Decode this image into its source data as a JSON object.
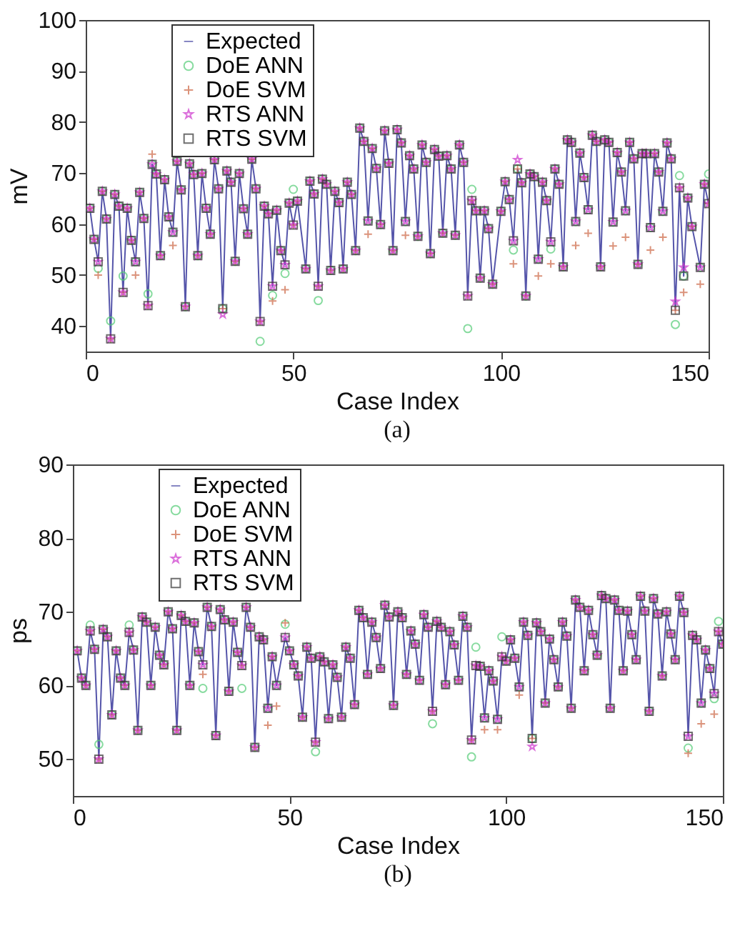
{
  "chart_data": [
    {
      "type": "line",
      "xlabel": "Case Index",
      "ylabel": "mV",
      "annotations": [
        "(a)"
      ],
      "xlim": [
        0,
        150
      ],
      "xticks": [
        0,
        50,
        100,
        150
      ],
      "ylim": [
        35,
        100
      ],
      "yticks": [
        40,
        50,
        60,
        70,
        80,
        90,
        100
      ],
      "grid": false,
      "legend": "top left",
      "x": [
        1,
        2,
        3,
        4,
        5,
        6,
        7,
        8,
        9,
        10,
        11,
        12,
        13,
        14,
        15,
        16,
        17,
        18,
        19,
        20,
        21,
        22,
        23,
        24,
        25,
        26,
        27,
        28,
        29,
        30,
        31,
        32,
        33,
        34,
        35,
        36,
        37,
        38,
        39,
        40,
        41,
        42,
        43,
        44,
        45,
        46,
        47,
        48,
        49,
        50,
        51,
        53,
        54,
        55,
        56,
        57,
        58,
        59,
        60,
        61,
        62,
        63,
        64,
        65,
        66,
        67,
        68,
        69,
        70,
        71,
        72,
        73,
        74,
        75,
        76,
        77,
        78,
        79,
        80,
        81,
        82,
        83,
        84,
        85,
        86,
        87,
        88,
        89,
        90,
        91,
        92,
        93,
        94,
        95,
        96,
        97,
        98,
        100,
        101,
        102,
        103,
        104,
        105,
        106,
        107,
        108,
        109,
        110,
        111,
        112,
        113,
        114,
        115,
        116,
        117,
        118,
        119,
        120,
        121,
        122,
        123,
        124,
        125,
        126,
        127,
        128,
        129,
        130,
        131,
        132,
        133,
        134,
        135,
        136,
        137,
        138,
        139,
        140,
        141,
        142,
        143,
        144,
        145,
        146,
        148,
        149,
        150
      ],
      "series": [
        {
          "name": "Expected",
          "type": "line",
          "marker": "none",
          "color": "#5555aa",
          "values": [
            63.1,
            57,
            52.6,
            66.4,
            61,
            37.5,
            65.8,
            63.5,
            46.6,
            63.1,
            56.8,
            52.6,
            66.2,
            61.1,
            44,
            71.7,
            69.8,
            53.8,
            68.7,
            61.4,
            58.4,
            72.3,
            66.7,
            43.8,
            71.8,
            69.7,
            53.8,
            69.9,
            63.1,
            58,
            72.6,
            66.9,
            43.4,
            70.4,
            68.2,
            52.7,
            69.9,
            63,
            58,
            72.7,
            66.9,
            40.9,
            63.5,
            62,
            47.8,
            62.7,
            54.8,
            52,
            64.1,
            59.8,
            64.5,
            51.2,
            68.4,
            65.9,
            47.8,
            68.8,
            67.8,
            50.9,
            66.4,
            64.2,
            51.2,
            68.2,
            65.8,
            54.8,
            78.8,
            76.2,
            60.6,
            74.8,
            70.9,
            59.9,
            78.3,
            71.9,
            54.8,
            78.5,
            75.9,
            60.5,
            73.4,
            70.8,
            57.6,
            75.5,
            72.1,
            54.2,
            74.6,
            73.3,
            58.2,
            73.4,
            70.8,
            57.8,
            75.5,
            72.1,
            45.9,
            64.6,
            62.6,
            49.4,
            62.6,
            59.1,
            48.2,
            62.5,
            68.3,
            64.8,
            56.7,
            70.8,
            68.1,
            45.9,
            69.8,
            69.3,
            53.1,
            68.2,
            64.6,
            56.5,
            70.8,
            67.8,
            51.6,
            76.5,
            76,
            60.5,
            73.9,
            69.1,
            62.8,
            77.4,
            76.2,
            51.6,
            76.5,
            76,
            60.4,
            74,
            70.2,
            62.6,
            76,
            72.8,
            52.1,
            73.8,
            73.8,
            59.3,
            73.8,
            70.2,
            62.5,
            75.9,
            72.8,
            43.1,
            67.1,
            49.8,
            65.1,
            59.5,
            51.5,
            67.8,
            64
          ]
        },
        {
          "name": "DoE ANN",
          "type": "scatter",
          "marker": "circle",
          "color": "#55cc77",
          "values": [
            63.1,
            57,
            51.3,
            66.4,
            61,
            41,
            65.8,
            63.5,
            49.8,
            63.1,
            56.8,
            52.6,
            66.2,
            61.1,
            46.3,
            71.7,
            69.8,
            53.8,
            68.7,
            61.4,
            58.4,
            72.3,
            66.7,
            43.8,
            71.8,
            69.7,
            53.8,
            69.9,
            63.1,
            58,
            72.6,
            66.9,
            43.4,
            70.4,
            68.2,
            52.7,
            69.9,
            63,
            58,
            72.7,
            66.9,
            37,
            63.5,
            62,
            46,
            62.7,
            54.8,
            50.3,
            64.1,
            66.8,
            64.5,
            51.2,
            68.4,
            65.9,
            45,
            68.8,
            67.8,
            50.9,
            66.4,
            64.2,
            51.2,
            68.2,
            65.8,
            54.8,
            78.8,
            76.2,
            60.6,
            74.8,
            70.9,
            59.9,
            78.3,
            71.9,
            54.8,
            78.5,
            75.9,
            60.5,
            73.4,
            70.8,
            57.6,
            75.5,
            72.1,
            54.2,
            74.6,
            73.3,
            58.2,
            73.4,
            70.8,
            57.8,
            75.5,
            72.1,
            39.5,
            66.8,
            62.6,
            49.4,
            62.6,
            59.1,
            48.2,
            62.5,
            68.3,
            64.8,
            54.9,
            70.8,
            68.1,
            45.9,
            69.8,
            69.3,
            53.1,
            68.2,
            64.6,
            55.1,
            70.8,
            67.8,
            51.6,
            76.5,
            76,
            60.5,
            73.9,
            69.1,
            62.8,
            77.4,
            76.2,
            51.6,
            76.5,
            76,
            60.4,
            74,
            70.2,
            62.6,
            76,
            72.8,
            52.1,
            73.8,
            73.8,
            59.3,
            73.8,
            70.2,
            62.5,
            75.9,
            72.8,
            40.3,
            69.5,
            49.8,
            65.1,
            59.5,
            51.5,
            67.8,
            69.8
          ]
        },
        {
          "name": "DoE SVM",
          "type": "scatter",
          "marker": "cross",
          "color": "#cc6644",
          "values": [
            63.1,
            57,
            50,
            66.4,
            61,
            37.5,
            65.8,
            63.5,
            46.6,
            63.1,
            56.8,
            50,
            66.2,
            61.1,
            44,
            73.7,
            69.8,
            53.8,
            68.7,
            61.4,
            55.8,
            72.3,
            66.7,
            43.8,
            71.8,
            69.7,
            53.8,
            69.9,
            63.1,
            58,
            72.6,
            66.9,
            43.4,
            70.4,
            68.2,
            52.7,
            69.9,
            63,
            58,
            72.7,
            66.9,
            40.9,
            63.5,
            62,
            44.9,
            62.7,
            54.8,
            47.1,
            64.1,
            59.8,
            64.5,
            51.2,
            68.4,
            65.9,
            47.8,
            68.8,
            67.8,
            50.9,
            66.4,
            64.2,
            51.2,
            68.2,
            65.8,
            54.8,
            78.8,
            76.2,
            58,
            74.8,
            70.9,
            59.9,
            78.3,
            71.9,
            54.8,
            78.5,
            75.9,
            57.8,
            73.4,
            70.8,
            57.6,
            75.5,
            72.1,
            54.2,
            74.6,
            73.3,
            58.2,
            73.4,
            70.8,
            57.8,
            75.5,
            72.1,
            45.9,
            64.6,
            62.6,
            49.4,
            62.6,
            59.1,
            48.2,
            62.5,
            68.3,
            64.8,
            52.2,
            70.8,
            68.1,
            45.9,
            69.8,
            69.3,
            49.8,
            68.2,
            64.6,
            52.2,
            70.8,
            67.8,
            51.6,
            76.5,
            76,
            55.8,
            73.9,
            69.1,
            58.2,
            77.4,
            76.2,
            51.6,
            76.5,
            76,
            55.7,
            74,
            70.2,
            57.4,
            76,
            72.8,
            52.1,
            73.8,
            73.8,
            54.9,
            73.8,
            70.2,
            57.4,
            75.9,
            72.8,
            43.1,
            67.1,
            46.6,
            65.1,
            59.5,
            48.2,
            67.8,
            64
          ]
        },
        {
          "name": "RTS ANN",
          "type": "scatter",
          "marker": "star",
          "color": "#cc33cc",
          "values": [
            63.1,
            57,
            52.6,
            66.4,
            61,
            37.5,
            65.8,
            63.5,
            46.6,
            63.1,
            56.8,
            52.6,
            66.2,
            61.1,
            44,
            71.7,
            69.8,
            53.8,
            68.7,
            61.4,
            58.4,
            72.3,
            66.7,
            43.8,
            71.8,
            69.7,
            53.8,
            69.9,
            63.1,
            58,
            72.6,
            66.9,
            42.3,
            70.4,
            68.2,
            52.7,
            69.9,
            63,
            58,
            72.7,
            66.9,
            40.9,
            63.5,
            62,
            47.8,
            62.7,
            54.8,
            52,
            64.1,
            59.8,
            64.5,
            51.2,
            68.4,
            65.9,
            47.8,
            68.8,
            67.8,
            50.9,
            66.4,
            64.2,
            51.2,
            68.2,
            65.8,
            54.8,
            78.8,
            76.2,
            60.6,
            74.8,
            70.9,
            59.9,
            78.3,
            71.9,
            54.8,
            78.5,
            75.9,
            60.5,
            73.4,
            70.8,
            57.6,
            75.5,
            72.1,
            54.2,
            74.6,
            73.3,
            58.2,
            73.4,
            70.8,
            57.8,
            75.5,
            72.1,
            45.9,
            64.6,
            62.6,
            49.4,
            62.6,
            59.1,
            48.2,
            62.5,
            68.3,
            64.8,
            56.7,
            72.6,
            68.1,
            45.9,
            69.8,
            69.3,
            53.1,
            68.2,
            64.6,
            56.5,
            70.8,
            67.8,
            51.6,
            76.5,
            76,
            60.5,
            73.9,
            69.1,
            62.8,
            77.4,
            76.2,
            51.6,
            76.5,
            76,
            60.4,
            74,
            70.2,
            62.6,
            76,
            72.8,
            52.1,
            73.8,
            73.8,
            59.3,
            73.8,
            70.2,
            62.5,
            75.9,
            72.8,
            44.8,
            67.1,
            51.5,
            65.1,
            59.5,
            51.5,
            67.8,
            64
          ]
        },
        {
          "name": "RTS SVM",
          "type": "scatter",
          "marker": "square",
          "color": "#333333",
          "values": [
            63.1,
            57,
            52.6,
            66.4,
            61,
            37.5,
            65.8,
            63.5,
            46.6,
            63.1,
            56.8,
            52.6,
            66.2,
            61.1,
            44,
            71.7,
            69.8,
            53.8,
            68.7,
            61.4,
            58.4,
            72.3,
            66.7,
            43.8,
            71.8,
            69.7,
            53.8,
            69.9,
            63.1,
            58,
            72.6,
            66.9,
            43.4,
            70.4,
            68.2,
            52.7,
            69.9,
            63,
            58,
            72.7,
            66.9,
            40.9,
            63.5,
            62,
            47.8,
            62.7,
            54.8,
            52,
            64.1,
            59.8,
            64.5,
            51.2,
            68.4,
            65.9,
            47.8,
            68.8,
            67.8,
            50.9,
            66.4,
            64.2,
            51.2,
            68.2,
            65.8,
            54.8,
            78.8,
            76.2,
            60.6,
            74.8,
            70.9,
            59.9,
            78.3,
            71.9,
            54.8,
            78.5,
            75.9,
            60.5,
            73.4,
            70.8,
            57.6,
            75.5,
            72.1,
            54.2,
            74.6,
            73.3,
            58.2,
            73.4,
            70.8,
            57.8,
            75.5,
            72.1,
            45.9,
            64.6,
            62.6,
            49.4,
            62.6,
            59.1,
            48.2,
            62.5,
            68.3,
            64.8,
            56.7,
            70.8,
            68.1,
            45.9,
            69.8,
            69.3,
            53.1,
            68.2,
            64.6,
            56.5,
            70.8,
            67.8,
            51.6,
            76.5,
            76,
            60.5,
            73.9,
            69.1,
            62.8,
            77.4,
            76.2,
            51.6,
            76.5,
            76,
            60.4,
            74,
            70.2,
            62.6,
            76,
            72.8,
            52.1,
            73.8,
            73.8,
            59.3,
            73.8,
            70.2,
            62.5,
            75.9,
            72.8,
            43.1,
            67.1,
            49.8,
            65.1,
            59.5,
            51.5,
            67.8,
            64
          ]
        }
      ]
    },
    {
      "type": "line",
      "xlabel": "Case Index",
      "ylabel": "ps",
      "annotations": [
        "(b)"
      ],
      "xlim": [
        0,
        150
      ],
      "xticks": [
        0,
        50,
        100,
        150
      ],
      "ylim": [
        45,
        90
      ],
      "yticks": [
        50,
        60,
        70,
        80,
        90
      ],
      "grid": false,
      "legend": "top left",
      "x": [
        1,
        2,
        3,
        4,
        5,
        6,
        7,
        8,
        9,
        10,
        11,
        12,
        13,
        14,
        15,
        16,
        17,
        18,
        19,
        20,
        21,
        22,
        23,
        24,
        25,
        26,
        27,
        28,
        29,
        30,
        31,
        32,
        33,
        34,
        35,
        36,
        37,
        38,
        39,
        40,
        41,
        42,
        43,
        44,
        45,
        46,
        47,
        49,
        50,
        51,
        52,
        53,
        54,
        55,
        56,
        57,
        58,
        59,
        60,
        61,
        62,
        63,
        64,
        65,
        66,
        67,
        68,
        69,
        70,
        71,
        72,
        73,
        74,
        75,
        76,
        77,
        78,
        79,
        80,
        81,
        82,
        83,
        84,
        85,
        86,
        87,
        88,
        89,
        90,
        91,
        92,
        93,
        94,
        95,
        96,
        97,
        98,
        99,
        100,
        101,
        102,
        103,
        104,
        105,
        106,
        107,
        108,
        109,
        110,
        111,
        112,
        113,
        114,
        115,
        116,
        117,
        118,
        119,
        120,
        121,
        122,
        123,
        124,
        125,
        126,
        127,
        128,
        129,
        130,
        131,
        132,
        133,
        134,
        135,
        136,
        137,
        138,
        139,
        140,
        141,
        142,
        143,
        144,
        145,
        146,
        147,
        148,
        149,
        150
      ],
      "series": [
        {
          "name": "Expected",
          "type": "line",
          "marker": "none",
          "color": "#5555aa",
          "values": [
            64.7,
            61,
            60,
            67.4,
            64.9,
            50,
            67.6,
            66.6,
            56,
            64.7,
            61,
            60,
            67.2,
            64.8,
            53.9,
            69.3,
            68.6,
            60,
            67.9,
            64.1,
            62.8,
            70,
            67.7,
            53.9,
            69.5,
            68.7,
            60,
            68.5,
            64.6,
            62.8,
            70.6,
            68,
            53.2,
            70.3,
            68.9,
            59.2,
            68.6,
            64.5,
            62.7,
            70.6,
            67.9,
            51.6,
            66.6,
            66.2,
            56.9,
            63.9,
            60,
            66.5,
            64.7,
            62.8,
            61.3,
            55.7,
            65.2,
            63.7,
            52.3,
            63.9,
            63.2,
            55.5,
            62.8,
            61.1,
            55.7,
            65.2,
            63.7,
            57.4,
            70.2,
            69.2,
            61.5,
            68.6,
            66.5,
            62.3,
            70.9,
            69.3,
            57.3,
            70,
            69.2,
            61.5,
            67.4,
            65.6,
            60.7,
            69.6,
            67.9,
            56.5,
            68.7,
            67.9,
            60.1,
            67.3,
            65.5,
            60.7,
            69.4,
            67.9,
            52.6,
            62.7,
            62.6,
            55.6,
            62,
            60.6,
            55.4,
            63.9,
            63.3,
            66.2,
            63.7,
            59.8,
            68.6,
            66.8,
            52.8,
            68.5,
            67.3,
            57.6,
            66.3,
            63.5,
            59.8,
            68.6,
            66.7,
            56.9,
            71.6,
            70.6,
            62,
            70.2,
            66.9,
            64.1,
            72.2,
            71.8,
            56.9,
            71.6,
            70.2,
            62,
            70.1,
            66.9,
            63.5,
            72.1,
            70.1,
            56.5,
            71.8,
            69.7,
            61.3,
            70,
            67,
            63.5,
            72.1,
            69.9,
            53.1,
            66.8,
            66.2,
            57.6,
            64.8,
            62.3,
            58.9,
            67.3,
            65.6
          ]
        },
        {
          "name": "DoE ANN",
          "type": "scatter",
          "marker": "circle",
          "color": "#55cc77",
          "values": [
            64.7,
            61,
            60,
            68.2,
            64.9,
            52,
            67.6,
            66.6,
            56,
            64.7,
            61,
            60,
            68.2,
            64.8,
            53.9,
            69.3,
            68.6,
            60,
            67.9,
            64.1,
            62.8,
            70,
            67.7,
            53.9,
            69.5,
            68.7,
            60,
            68.5,
            64.6,
            59.6,
            70.6,
            68,
            53.2,
            70.3,
            68.9,
            59.2,
            68.6,
            64.5,
            59.6,
            70.6,
            67.9,
            51.6,
            66.6,
            66.2,
            56.9,
            63.9,
            60,
            68.3,
            64.7,
            62.8,
            61.3,
            55.7,
            65.2,
            63.7,
            51,
            63.9,
            63.2,
            55.5,
            62.8,
            61.1,
            55.7,
            65.2,
            63.7,
            57.4,
            70.2,
            69.2,
            61.5,
            68.6,
            66.5,
            62.3,
            70.9,
            69.3,
            57.3,
            70,
            69.2,
            61.5,
            67.4,
            65.6,
            60.7,
            69.6,
            67.9,
            54.8,
            68.7,
            67.9,
            60.1,
            67.3,
            65.5,
            60.7,
            69.4,
            67.9,
            50.3,
            65.2,
            62.6,
            55.6,
            62,
            60.6,
            55.4,
            66.6,
            63.3,
            66.2,
            63.7,
            59.8,
            68.6,
            66.8,
            52.8,
            68.5,
            67.3,
            57.6,
            66.3,
            63.5,
            59.8,
            68.6,
            66.7,
            56.9,
            71.6,
            70.6,
            62,
            70.2,
            66.9,
            64.1,
            72.2,
            71.8,
            56.9,
            71.6,
            70.2,
            62,
            70.1,
            66.9,
            63.5,
            72.1,
            70.1,
            56.5,
            71.8,
            69.7,
            61.3,
            70,
            67,
            63.5,
            72.1,
            69.9,
            51.5,
            66.8,
            66.2,
            57.6,
            64.8,
            62.3,
            58.2,
            68.7,
            65.6
          ]
        },
        {
          "name": "DoE SVM",
          "type": "scatter",
          "marker": "cross",
          "color": "#cc6644",
          "values": [
            64.7,
            61,
            60,
            67.4,
            64.9,
            50,
            67.6,
            66.6,
            56,
            64.7,
            61,
            60,
            67.2,
            64.8,
            53.9,
            69.3,
            68.6,
            60,
            67.9,
            64.1,
            62.8,
            70,
            67.7,
            53.9,
            69.5,
            68.7,
            60,
            68.5,
            64.6,
            61.5,
            70.6,
            68,
            53.2,
            70.3,
            68.9,
            59.2,
            68.6,
            64.5,
            62.7,
            70.6,
            67.9,
            51.6,
            66.6,
            66.2,
            54.6,
            63.9,
            57.2,
            68.5,
            64.7,
            62.8,
            61.3,
            55.7,
            65.2,
            63.7,
            52.3,
            63.9,
            63.2,
            55.5,
            62.8,
            61.1,
            55.7,
            65.2,
            63.7,
            57.4,
            70.2,
            69.2,
            61.5,
            68.6,
            66.5,
            62.3,
            70.9,
            69.3,
            57.3,
            70,
            69.2,
            61.5,
            67.4,
            65.6,
            60.7,
            69.6,
            67.9,
            56.5,
            68.7,
            67.9,
            60.1,
            67.3,
            65.5,
            60.7,
            69.4,
            67.9,
            52.6,
            62.7,
            62.6,
            54,
            62,
            60.6,
            54,
            63.9,
            63.3,
            66.2,
            63.7,
            58.7,
            68.6,
            66.8,
            52.8,
            68.5,
            67.3,
            57.6,
            66.3,
            63.5,
            59.8,
            68.6,
            66.7,
            56.9,
            71.6,
            70.6,
            62,
            70.2,
            66.9,
            64.1,
            72.2,
            71.8,
            56.9,
            71.6,
            70.2,
            62,
            70.1,
            66.9,
            63.5,
            72.1,
            70.1,
            56.5,
            71.8,
            69.7,
            61.3,
            70,
            67,
            63.5,
            72.1,
            69.9,
            50.8,
            66.8,
            66.2,
            54.8,
            64.8,
            62.3,
            56.1,
            67.3,
            65.6
          ]
        },
        {
          "name": "RTS ANN",
          "type": "scatter",
          "marker": "star",
          "color": "#cc33cc",
          "values": [
            64.7,
            61,
            60,
            67.4,
            64.9,
            50,
            67.6,
            66.6,
            56,
            64.7,
            61,
            60,
            67.2,
            64.8,
            53.9,
            69.3,
            68.6,
            60,
            67.9,
            64.1,
            62.8,
            70,
            67.7,
            53.9,
            69.5,
            68.7,
            60,
            68.5,
            64.6,
            62.8,
            70.6,
            68,
            53.2,
            70.3,
            68.9,
            59.2,
            68.6,
            64.5,
            62.7,
            70.6,
            67.9,
            51.6,
            66.6,
            66.2,
            56.9,
            63.9,
            60,
            66.5,
            64.7,
            62.8,
            61.3,
            55.7,
            65.2,
            63.7,
            52.3,
            63.9,
            63.2,
            55.5,
            62.8,
            61.1,
            55.7,
            65.2,
            63.7,
            57.4,
            70.2,
            69.2,
            61.5,
            68.6,
            66.5,
            62.3,
            70.9,
            69.3,
            57.3,
            70,
            69.2,
            61.5,
            67.4,
            65.6,
            60.7,
            69.6,
            67.9,
            56.5,
            68.7,
            67.9,
            60.1,
            67.3,
            65.5,
            60.7,
            69.4,
            67.9,
            52.6,
            62.7,
            62.6,
            55.6,
            62,
            60.6,
            55.4,
            63.9,
            63.3,
            66.2,
            63.7,
            59.8,
            68.6,
            66.8,
            51.7,
            68.5,
            67.3,
            57.6,
            66.3,
            63.5,
            59.8,
            68.6,
            66.7,
            56.9,
            71.6,
            70.6,
            62,
            70.2,
            66.9,
            64.1,
            72.2,
            71.8,
            56.9,
            71.6,
            70.2,
            62,
            70.1,
            66.9,
            63.5,
            72.1,
            70.1,
            56.5,
            71.8,
            69.7,
            61.3,
            70,
            67,
            63.5,
            72.1,
            69.9,
            53.1,
            66.8,
            66.2,
            57.6,
            64.8,
            62.3,
            58.9,
            67.3,
            65.6
          ]
        },
        {
          "name": "RTS SVM",
          "type": "scatter",
          "marker": "square",
          "color": "#333333",
          "values": [
            64.7,
            61,
            60,
            67.4,
            64.9,
            50,
            67.6,
            66.6,
            56,
            64.7,
            61,
            60,
            67.2,
            64.8,
            53.9,
            69.3,
            68.6,
            60,
            67.9,
            64.1,
            62.8,
            70,
            67.7,
            53.9,
            69.5,
            68.7,
            60,
            68.5,
            64.6,
            62.8,
            70.6,
            68,
            53.2,
            70.3,
            68.9,
            59.2,
            68.6,
            64.5,
            62.7,
            70.6,
            67.9,
            51.6,
            66.6,
            66.2,
            56.9,
            63.9,
            60,
            66.5,
            64.7,
            62.8,
            61.3,
            55.7,
            65.2,
            63.7,
            52.3,
            63.9,
            63.2,
            55.5,
            62.8,
            61.1,
            55.7,
            65.2,
            63.7,
            57.4,
            70.2,
            69.2,
            61.5,
            68.6,
            66.5,
            62.3,
            70.9,
            69.3,
            57.3,
            70,
            69.2,
            61.5,
            67.4,
            65.6,
            60.7,
            69.6,
            67.9,
            56.5,
            68.7,
            67.9,
            60.1,
            67.3,
            65.5,
            60.7,
            69.4,
            67.9,
            52.6,
            62.7,
            62.6,
            55.6,
            62,
            60.6,
            55.4,
            63.9,
            63.3,
            66.2,
            63.7,
            59.8,
            68.6,
            66.8,
            52.8,
            68.5,
            67.3,
            57.6,
            66.3,
            63.5,
            59.8,
            68.6,
            66.7,
            56.9,
            71.6,
            70.6,
            62,
            70.2,
            66.9,
            64.1,
            72.2,
            71.8,
            56.9,
            71.6,
            70.2,
            62,
            70.1,
            66.9,
            63.5,
            72.1,
            70.1,
            56.5,
            71.8,
            69.7,
            61.3,
            70,
            67,
            63.5,
            72.1,
            69.9,
            53.1,
            66.8,
            66.2,
            57.6,
            64.8,
            62.3,
            58.9,
            67.3,
            65.6
          ]
        }
      ]
    }
  ]
}
